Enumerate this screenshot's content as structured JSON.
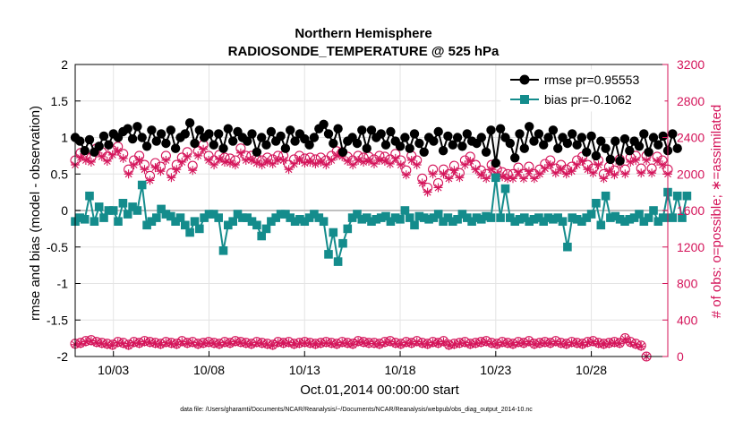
{
  "chart_data": {
    "type": "line",
    "title": "Northern Hemisphere",
    "subtitle": "RADIOSONDE_TEMPERATURE @ 525 hPa",
    "xlabel": "Oct.01,2014 00:00:00 start",
    "ylabel_left": "rmse and bias (model - observation)",
    "ylabel_right": "# of obs: o=possible; ∗=assimilated",
    "left_ylim": [
      -2,
      2
    ],
    "left_yticks": [
      "-2",
      "-1.5",
      "-1",
      "-0.5",
      "0",
      "0.5",
      "1",
      "1.5",
      "2"
    ],
    "right_ylim": [
      0,
      3200
    ],
    "right_yticks": [
      "0",
      "400",
      "800",
      "1200",
      "1600",
      "2000",
      "2400",
      "2800",
      "3200"
    ],
    "xlim": [
      1,
      32
    ],
    "x_tick_days": [
      3,
      8,
      13,
      18,
      23,
      28
    ],
    "x_tick_labels": [
      "10/03",
      "10/08",
      "10/13",
      "10/18",
      "10/23",
      "10/28"
    ],
    "colors": {
      "rmse": "#000000",
      "bias": "#148c8c",
      "obs": "#d4145a",
      "zero": "#c0c0c0"
    },
    "series": [
      {
        "name": "rmse",
        "legend": "rmse pr=0.95553",
        "values": [
          1.0,
          0.95,
          0.82,
          0.97,
          0.8,
          0.88,
          1.02,
          0.9,
          1.05,
          1.0,
          1.08,
          1.12,
          0.98,
          1.15,
          1.0,
          0.88,
          1.1,
          0.95,
          1.05,
          0.92,
          1.1,
          0.85,
          1.0,
          1.05,
          1.2,
          0.92,
          1.1,
          1.0,
          1.05,
          0.9,
          1.05,
          0.85,
          1.12,
          0.95,
          1.08,
          1.0,
          0.95,
          1.05,
          0.8,
          1.0,
          0.9,
          1.08,
          0.95,
          1.02,
          0.85,
          1.1,
          0.95,
          1.05,
          0.98,
          0.9,
          1.0,
          1.12,
          1.18,
          1.05,
          0.92,
          1.12,
          0.8,
          0.95,
          1.0,
          0.92,
          1.1,
          0.85,
          1.1,
          1.0,
          1.05,
          0.9,
          1.08,
          0.95,
          0.88,
          1.0,
          0.85,
          1.05,
          0.92,
          0.8,
          1.0,
          0.95,
          1.08,
          0.82,
          1.02,
          0.9,
          1.0,
          0.88,
          1.05,
          0.95,
          0.92,
          1.0,
          0.8,
          1.1,
          0.65,
          1.12,
          1.0,
          0.92,
          0.72,
          1.05,
          0.85,
          1.15,
          0.95,
          1.05,
          0.9,
          1.0,
          1.1,
          0.85,
          1.0,
          0.92,
          1.05,
          0.9,
          1.0,
          0.8,
          1.02,
          0.75,
          0.95,
          0.85,
          0.7,
          0.95,
          0.68,
          0.98,
          0.82,
          0.95,
          0.88,
          1.05,
          0.8,
          1.0,
          0.9,
          1.02,
          0.82,
          1.05,
          0.85
        ]
      },
      {
        "name": "bias",
        "legend": "bias pr=-0.1062",
        "values": [
          -0.15,
          -0.1,
          -0.12,
          0.2,
          -0.15,
          0.05,
          -0.1,
          0.0,
          0.0,
          -0.15,
          0.1,
          -0.05,
          0.05,
          0.0,
          0.35,
          -0.2,
          -0.15,
          -0.1,
          0.02,
          -0.05,
          -0.08,
          -0.15,
          -0.1,
          -0.2,
          -0.3,
          -0.15,
          -0.25,
          -0.1,
          -0.05,
          -0.05,
          -0.1,
          -0.55,
          -0.2,
          -0.15,
          -0.05,
          -0.1,
          -0.1,
          -0.15,
          -0.2,
          -0.35,
          -0.25,
          -0.15,
          -0.1,
          -0.05,
          -0.05,
          -0.1,
          -0.15,
          -0.12,
          -0.15,
          -0.1,
          -0.05,
          -0.1,
          -0.15,
          -0.6,
          -0.3,
          -0.7,
          -0.45,
          -0.25,
          -0.1,
          -0.05,
          -0.12,
          -0.1,
          -0.15,
          -0.12,
          -0.1,
          -0.08,
          -0.15,
          -0.1,
          -0.12,
          0.0,
          -0.1,
          -0.2,
          -0.08,
          -0.1,
          -0.12,
          -0.1,
          -0.05,
          -0.15,
          -0.1,
          -0.15,
          -0.12,
          -0.05,
          -0.1,
          -0.15,
          -0.1,
          -0.12,
          -0.08,
          -0.1,
          0.45,
          -0.1,
          0.3,
          -0.1,
          -0.15,
          -0.12,
          -0.1,
          -0.15,
          -0.12,
          -0.1,
          -0.15,
          -0.1,
          -0.12,
          -0.1,
          -0.15,
          -0.5,
          -0.1,
          -0.12,
          -0.15,
          -0.1,
          -0.05,
          0.1,
          -0.2,
          0.2,
          -0.1,
          -0.08,
          -0.12,
          -0.15,
          -0.12,
          -0.1,
          -0.05,
          -0.15,
          -0.1,
          0.0,
          -0.15,
          -0.1,
          0.25,
          -0.1,
          0.2,
          -0.1,
          0.2
        ]
      },
      {
        "name": "obs_possible_6",
        "values": [
          2150,
          2230,
          2200,
          2180,
          2280,
          2240,
          2190,
          2260,
          2300,
          2220,
          2050,
          2150,
          2200,
          2100,
          1980,
          2120,
          2080,
          2200,
          2010,
          2100,
          2180,
          2240,
          2090,
          2250,
          2320,
          2200,
          2150,
          2210,
          2180,
          2170,
          2150,
          2280,
          2200,
          2200,
          2170,
          2150,
          2180,
          2160,
          2200,
          2200,
          2100,
          2160,
          2200,
          2170,
          2180,
          2160,
          2180,
          2150,
          2200,
          2250,
          2240,
          2190,
          2150,
          2200,
          2180,
          2190,
          2160,
          2200,
          2190,
          2160,
          2220,
          2150,
          2040,
          2200,
          2150,
          1950,
          1850,
          2050,
          1900,
          2050,
          2000,
          2090,
          2010,
          2150,
          2190,
          2100,
          2040,
          2000,
          2100,
          2050,
          2020,
          2000,
          2000,
          2070,
          2000,
          2080,
          2000,
          2050,
          2110,
          2150,
          2060,
          2100,
          2050,
          2080,
          2150,
          2190,
          2100,
          2060,
          2150,
          2000,
          2080,
          2040,
          2160,
          2050,
          2180,
          2200,
          2060,
          2200,
          2060,
          2190,
          2150,
          2050
        ]
      },
      {
        "name": "obs_possible_18",
        "values": [
          140,
          150,
          170,
          180,
          160,
          150,
          140,
          130,
          160,
          150,
          130,
          160,
          150,
          170,
          160,
          150,
          140,
          160,
          150,
          140,
          170,
          150,
          160,
          140,
          150,
          160,
          150,
          140,
          160,
          150,
          170,
          160,
          150,
          140,
          160,
          150,
          140,
          130,
          160,
          150,
          160,
          140,
          150,
          160,
          150,
          140,
          150,
          160,
          150,
          140,
          160,
          150,
          140,
          170,
          160,
          150,
          150,
          140,
          160,
          170,
          150,
          140,
          160,
          150,
          170,
          150,
          140,
          160,
          150,
          170,
          130,
          140,
          150,
          160,
          140,
          150,
          160,
          170,
          150,
          140,
          160,
          150,
          140,
          160,
          150,
          170,
          140,
          150,
          160,
          150,
          170,
          150,
          140,
          160,
          150,
          140,
          160,
          170,
          150,
          140,
          150,
          160,
          150,
          200,
          160,
          140,
          120,
          0
        ]
      },
      {
        "name": "obs_assimilated_6",
        "values": [
          2100,
          2180,
          2150,
          2130,
          2230,
          2190,
          2140,
          2210,
          2250,
          2170,
          2000,
          2100,
          2150,
          2050,
          1930,
          2070,
          2030,
          2150,
          1960,
          2050,
          2130,
          2190,
          2040,
          2200,
          2270,
          2150,
          2100,
          2160,
          2130,
          2120,
          2100,
          2230,
          2150,
          2150,
          2120,
          2100,
          2130,
          2110,
          2150,
          2150,
          2050,
          2110,
          2150,
          2120,
          2130,
          2110,
          2130,
          2100,
          2150,
          2200,
          2190,
          2140,
          2100,
          2150,
          2130,
          2140,
          2110,
          2150,
          2140,
          2110,
          2170,
          2100,
          1990,
          2150,
          2100,
          1900,
          1800,
          2000,
          1850,
          2000,
          1950,
          2040,
          1960,
          2100,
          2140,
          2050,
          1990,
          1950,
          2050,
          2000,
          1970,
          1950,
          1950,
          2020,
          1950,
          2030,
          1950,
          2000,
          2060,
          2100,
          2010,
          2050,
          2000,
          2030,
          2100,
          2140,
          2050,
          2010,
          2100,
          1950,
          2030,
          1990,
          2110,
          2000,
          2130,
          2150,
          2010,
          2150,
          2010,
          2140,
          2100,
          2000
        ]
      },
      {
        "name": "obs_assimilated_18",
        "values": [
          130,
          140,
          160,
          170,
          150,
          140,
          130,
          120,
          150,
          140,
          120,
          150,
          140,
          160,
          150,
          140,
          130,
          150,
          140,
          130,
          160,
          140,
          150,
          130,
          140,
          150,
          140,
          130,
          150,
          140,
          160,
          150,
          140,
          130,
          150,
          140,
          130,
          120,
          150,
          140,
          150,
          130,
          140,
          150,
          140,
          130,
          140,
          150,
          140,
          130,
          150,
          140,
          130,
          160,
          150,
          140,
          140,
          130,
          150,
          160,
          140,
          130,
          150,
          140,
          160,
          140,
          130,
          150,
          140,
          160,
          120,
          130,
          140,
          150,
          130,
          140,
          150,
          160,
          140,
          130,
          150,
          140,
          130,
          150,
          140,
          160,
          130,
          140,
          150,
          140,
          160,
          140,
          130,
          150,
          140,
          130,
          150,
          160,
          140,
          130,
          140,
          150,
          140,
          190,
          150,
          130,
          110,
          0
        ]
      }
    ]
  },
  "footer": {
    "data_file": "data file: /Users/gharamti/Documents/NCAR/Reanalysis/~/Documents/NCAR/Reanalysis/webpub/obs_diag_output_2014-10.nc"
  }
}
